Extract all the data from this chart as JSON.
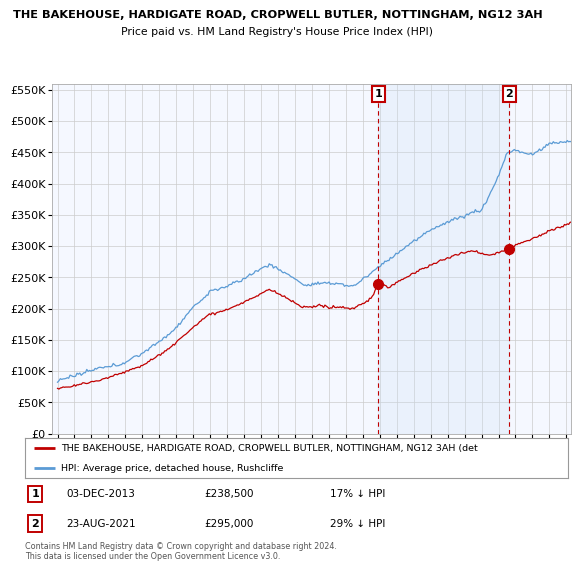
{
  "title": "THE BAKEHOUSE, HARDIGATE ROAD, CROPWELL BUTLER, NOTTINGHAM, NG12 3AH",
  "subtitle": "Price paid vs. HM Land Registry's House Price Index (HPI)",
  "hpi_label": "HPI: Average price, detached house, Rushcliffe",
  "property_label": "THE BAKEHOUSE, HARDIGATE ROAD, CROPWELL BUTLER, NOTTINGHAM, NG12 3AH (det",
  "annotation1_date": "03-DEC-2013",
  "annotation1_price": "£238,500",
  "annotation1_hpi": "17% ↓ HPI",
  "annotation2_date": "23-AUG-2021",
  "annotation2_price": "£295,000",
  "annotation2_hpi": "29% ↓ HPI",
  "footer": "Contains HM Land Registry data © Crown copyright and database right 2024.\nThis data is licensed under the Open Government Licence v3.0.",
  "hpi_color": "#5b9bd5",
  "hpi_fill_color": "#cce0f5",
  "property_color": "#c00000",
  "background_color": "#ffffff",
  "chart_bg_color": "#f5f8ff",
  "ylim": [
    0,
    560000
  ],
  "yticks": [
    0,
    50000,
    100000,
    150000,
    200000,
    250000,
    300000,
    350000,
    400000,
    450000,
    500000,
    550000
  ],
  "point1_x": 2013.92,
  "point1_y": 238500,
  "point2_x": 2021.64,
  "point2_y": 295000,
  "xmin": 1995.0,
  "xmax": 2025.3
}
